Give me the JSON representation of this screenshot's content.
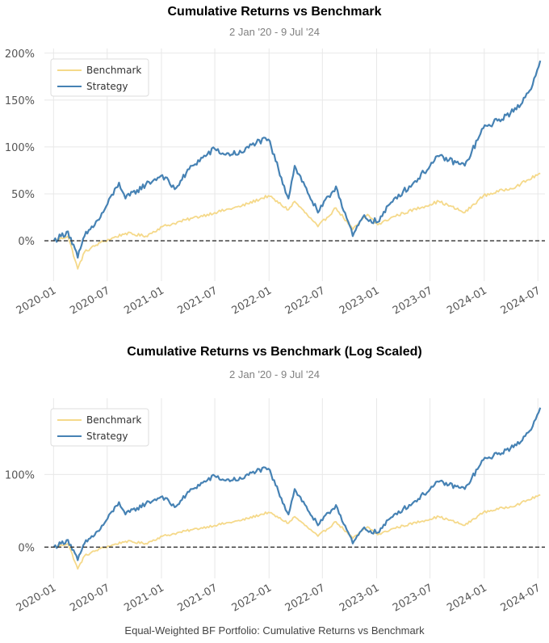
{
  "caption": "Equal-Weighted BF Portfolio: Cumulative Returns vs Benchmark",
  "colors": {
    "benchmark": "#f5d98a",
    "strategy": "#4682b4",
    "baseline": "#333333",
    "grid": "#e8e8e8"
  },
  "chart_data": [
    {
      "type": "line",
      "title": "Cumulative Returns vs Benchmark",
      "subtitle": "2 Jan '20 -  9 Jul '24",
      "xlabel": "",
      "ylabel": "",
      "x_range": [
        "2019-12-01",
        "2024-07-25"
      ],
      "ylim": [
        -43,
        205
      ],
      "y_ticks": [
        0,
        50,
        100,
        150,
        200
      ],
      "y_tick_labels": [
        "0%",
        "50%",
        "100%",
        "150%",
        "200%"
      ],
      "x_ticks": [
        "2020-01",
        "2020-07",
        "2021-01",
        "2021-07",
        "2022-01",
        "2022-07",
        "2023-01",
        "2023-07",
        "2024-01",
        "2024-07"
      ],
      "grid": true,
      "legend": "top-left",
      "baseline": 0,
      "series": [
        {
          "name": "Benchmark",
          "x": [
            "2020-01-02",
            "2020-02-19",
            "2020-03-23",
            "2020-04-15",
            "2020-06-08",
            "2020-09-01",
            "2020-11-09",
            "2021-01-04",
            "2021-04-15",
            "2021-07-01",
            "2021-09-30",
            "2021-12-30",
            "2022-03-08",
            "2022-03-29",
            "2022-06-16",
            "2022-08-16",
            "2022-10-12",
            "2022-12-01",
            "2023-01-05",
            "2023-03-01",
            "2023-07-31",
            "2023-10-27",
            "2023-12-29",
            "2024-04-19",
            "2024-07-09"
          ],
          "values": [
            0,
            5,
            -30,
            -12,
            -2,
            8,
            5,
            15,
            24,
            30,
            37,
            48,
            33,
            42,
            15,
            35,
            12,
            28,
            17,
            26,
            42,
            30,
            48,
            58,
            72
          ]
        },
        {
          "name": "Strategy",
          "x": [
            "2020-01-02",
            "2020-02-19",
            "2020-03-23",
            "2020-04-15",
            "2020-06-08",
            "2020-08-10",
            "2020-09-01",
            "2020-11-09",
            "2021-01-04",
            "2021-02-15",
            "2021-04-15",
            "2021-07-01",
            "2021-08-02",
            "2021-10-04",
            "2021-11-08",
            "2021-12-30",
            "2022-03-08",
            "2022-03-29",
            "2022-06-16",
            "2022-08-16",
            "2022-10-12",
            "2022-11-15",
            "2023-01-05",
            "2023-03-01",
            "2023-05-02",
            "2023-07-31",
            "2023-10-27",
            "2023-12-29",
            "2024-02-15",
            "2024-04-19",
            "2024-06-03",
            "2024-07-09"
          ],
          "values": [
            0,
            10,
            -18,
            5,
            25,
            62,
            45,
            60,
            70,
            55,
            80,
            98,
            92,
            94,
            104,
            108,
            45,
            80,
            30,
            58,
            5,
            25,
            20,
            45,
            60,
            90,
            80,
            120,
            128,
            140,
            160,
            192
          ]
        }
      ]
    },
    {
      "type": "line",
      "title": "Cumulative Returns vs Benchmark (Log Scaled)",
      "subtitle": "2 Jan '20 -  9 Jul '24",
      "xlabel": "",
      "ylabel": "",
      "y_scale": "log",
      "x_range": [
        "2019-12-01",
        "2024-07-25"
      ],
      "ylim": [
        -43,
        205
      ],
      "y_ticks": [
        0,
        100
      ],
      "y_tick_labels": [
        "0%",
        "100%"
      ],
      "x_ticks": [
        "2020-01",
        "2020-07",
        "2021-01",
        "2021-07",
        "2022-01",
        "2022-07",
        "2023-01",
        "2023-07",
        "2024-01",
        "2024-07"
      ],
      "grid": true,
      "legend": "top-left",
      "baseline": 0,
      "series": [
        {
          "name": "Benchmark",
          "x": [
            "2020-01-02",
            "2020-02-19",
            "2020-03-23",
            "2020-04-15",
            "2020-06-08",
            "2020-09-01",
            "2020-11-09",
            "2021-01-04",
            "2021-04-15",
            "2021-07-01",
            "2021-09-30",
            "2021-12-30",
            "2022-03-08",
            "2022-03-29",
            "2022-06-16",
            "2022-08-16",
            "2022-10-12",
            "2022-12-01",
            "2023-01-05",
            "2023-03-01",
            "2023-07-31",
            "2023-10-27",
            "2023-12-29",
            "2024-04-19",
            "2024-07-09"
          ],
          "values": [
            0,
            5,
            -30,
            -12,
            -2,
            8,
            5,
            15,
            24,
            30,
            37,
            48,
            33,
            42,
            15,
            35,
            12,
            28,
            17,
            26,
            42,
            30,
            48,
            58,
            72
          ]
        },
        {
          "name": "Strategy",
          "x": [
            "2020-01-02",
            "2020-02-19",
            "2020-03-23",
            "2020-04-15",
            "2020-06-08",
            "2020-08-10",
            "2020-09-01",
            "2020-11-09",
            "2021-01-04",
            "2021-02-15",
            "2021-04-15",
            "2021-07-01",
            "2021-08-02",
            "2021-10-04",
            "2021-11-08",
            "2021-12-30",
            "2022-03-08",
            "2022-03-29",
            "2022-06-16",
            "2022-08-16",
            "2022-10-12",
            "2022-11-15",
            "2023-01-05",
            "2023-03-01",
            "2023-05-02",
            "2023-07-31",
            "2023-10-27",
            "2023-12-29",
            "2024-02-15",
            "2024-04-19",
            "2024-06-03",
            "2024-07-09"
          ],
          "values": [
            0,
            10,
            -18,
            5,
            25,
            62,
            45,
            60,
            70,
            55,
            80,
            98,
            92,
            94,
            104,
            108,
            45,
            80,
            30,
            58,
            5,
            25,
            20,
            45,
            60,
            90,
            80,
            120,
            128,
            140,
            160,
            192
          ]
        }
      ]
    }
  ]
}
